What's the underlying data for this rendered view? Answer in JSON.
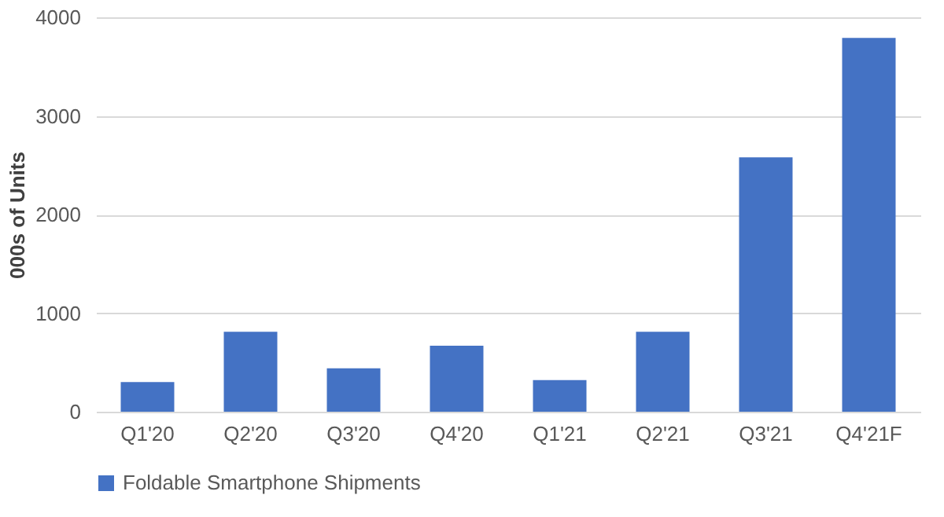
{
  "chart_data": {
    "type": "bar",
    "ylabel": "000s of Units",
    "categories": [
      "Q1'20",
      "Q2'20",
      "Q3'20",
      "Q4'20",
      "Q1'21",
      "Q2'21",
      "Q3'21",
      "Q4'21F"
    ],
    "series": [
      {
        "name": "Foldable Smartphone Shipments",
        "color": "#4472c4",
        "values": [
          300,
          810,
          440,
          670,
          320,
          810,
          2580,
          3790
        ]
      }
    ],
    "ylim": [
      0,
      4000
    ],
    "yticks": [
      0,
      1000,
      2000,
      3000,
      4000
    ],
    "grid": "y",
    "legend": "bottom"
  }
}
